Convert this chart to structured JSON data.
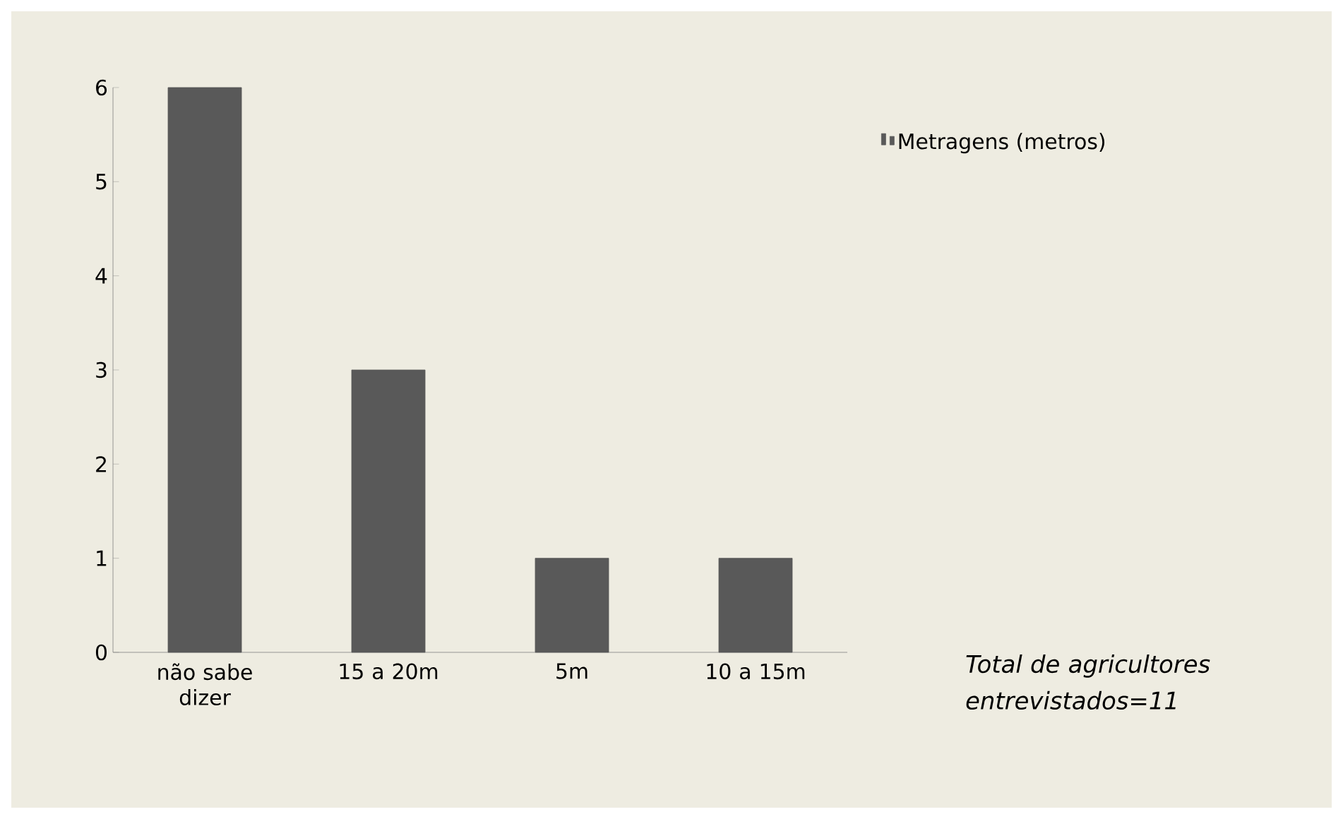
{
  "chart_data": {
    "type": "bar",
    "categories": [
      "não sabe dizer",
      "15 a 20m",
      "5m",
      "10 a 15m"
    ],
    "series": [
      {
        "name": "Metragens (metros)",
        "color": "#595959",
        "values": [
          6,
          3,
          1,
          1
        ]
      }
    ],
    "ylim": [
      0,
      6
    ],
    "yticks": [
      0,
      1,
      2,
      3,
      4,
      5,
      6
    ],
    "grid": false,
    "legend": "right",
    "annotations": [
      "Total de agricultores entrevistados=11"
    ]
  }
}
